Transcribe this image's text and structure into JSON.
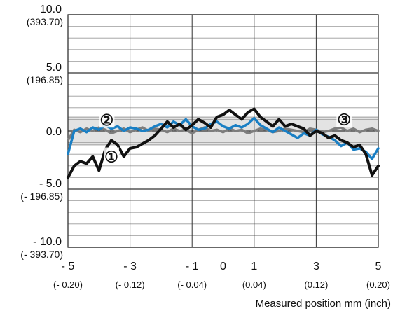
{
  "chart_data": {
    "type": "line",
    "xlabel": "Measured position mm (inch)",
    "ylabel": "",
    "xlim": [
      -5,
      5
    ],
    "ylim": [
      -10,
      10
    ],
    "grid": true,
    "tolerance_band": [
      -1.2,
      1.2
    ],
    "x_ticks": [
      {
        "value": -5,
        "label": "- 5",
        "sub": "(- 0.20)"
      },
      {
        "value": -3,
        "label": "- 3",
        "sub": "(- 0.12)"
      },
      {
        "value": -1,
        "label": "- 1",
        "sub": "(- 0.04)"
      },
      {
        "value": 0,
        "label": "0",
        "sub": ""
      },
      {
        "value": 1,
        "label": "1",
        "sub": "(0.04)"
      },
      {
        "value": 3,
        "label": "3",
        "sub": "(0.12)"
      },
      {
        "value": 5,
        "label": "5",
        "sub": "(0.20)"
      }
    ],
    "y_ticks": [
      {
        "value": 10,
        "label": "10.0",
        "sub": "(393.70)"
      },
      {
        "value": 5,
        "label": "5.0",
        "sub": "(196.85)"
      },
      {
        "value": 0,
        "label": "0.0",
        "sub": ""
      },
      {
        "value": -5,
        "label": "- 5.0",
        "sub": "(- 196.85)"
      },
      {
        "value": -10,
        "label": "- 10.0",
        "sub": "(- 393.70)"
      }
    ],
    "markers": [
      {
        "label": "①",
        "x": -3.6,
        "y": -2.2
      },
      {
        "label": "②",
        "x": -3.75,
        "y": 0.95
      },
      {
        "label": "③",
        "x": 3.9,
        "y": 1.0
      }
    ],
    "series": [
      {
        "id": "1",
        "color": "#111111",
        "x": [
          -5.0,
          -4.8,
          -4.6,
          -4.4,
          -4.2,
          -4.0,
          -3.8,
          -3.6,
          -3.4,
          -3.2,
          -3.0,
          -2.8,
          -2.6,
          -2.4,
          -2.2,
          -2.0,
          -1.8,
          -1.6,
          -1.4,
          -1.2,
          -1.0,
          -0.8,
          -0.6,
          -0.4,
          -0.2,
          0.0,
          0.2,
          0.4,
          0.6,
          0.8,
          1.0,
          1.2,
          1.4,
          1.6,
          1.8,
          2.0,
          2.2,
          2.4,
          2.6,
          2.8,
          3.0,
          3.2,
          3.4,
          3.6,
          3.8,
          4.0,
          4.2,
          4.4,
          4.6,
          4.8,
          5.0
        ],
        "values": [
          -4.0,
          -3.0,
          -2.6,
          -2.8,
          -2.2,
          -3.4,
          -1.6,
          -0.8,
          -1.2,
          -2.2,
          -1.5,
          -1.4,
          -1.1,
          -0.8,
          -0.4,
          0.2,
          0.8,
          0.3,
          0.6,
          0.1,
          0.5,
          1.0,
          0.7,
          0.3,
          1.2,
          1.4,
          1.8,
          1.4,
          1.0,
          1.6,
          1.9,
          1.2,
          0.8,
          0.4,
          1.0,
          0.4,
          0.6,
          0.4,
          0.2,
          -0.4,
          0.0,
          -0.2,
          -0.6,
          -0.4,
          -0.8,
          -1.0,
          -1.4,
          -1.2,
          -2.0,
          -3.8,
          -3.0
        ]
      },
      {
        "id": "2",
        "color": "#1a7fc4",
        "x": [
          -5.0,
          -4.8,
          -4.6,
          -4.4,
          -4.2,
          -4.0,
          -3.8,
          -3.6,
          -3.4,
          -3.2,
          -3.0,
          -2.8,
          -2.6,
          -2.4,
          -2.2,
          -2.0,
          -1.8,
          -1.6,
          -1.4,
          -1.2,
          -1.0,
          -0.8,
          -0.6,
          -0.4,
          -0.2,
          0.0,
          0.2,
          0.4,
          0.6,
          0.8,
          1.0,
          1.2,
          1.4,
          1.6,
          1.8,
          2.0,
          2.2,
          2.4,
          2.6,
          2.8,
          3.0,
          3.2,
          3.4,
          3.6,
          3.8,
          4.0,
          4.2,
          4.4,
          4.6,
          4.8,
          5.0
        ],
        "values": [
          -2.0,
          0.0,
          0.2,
          -0.1,
          0.3,
          0.1,
          0.5,
          0.2,
          0.4,
          0.0,
          0.3,
          0.2,
          0.0,
          0.1,
          0.4,
          0.6,
          0.3,
          0.8,
          0.5,
          1.0,
          0.4,
          0.1,
          0.2,
          0.6,
          0.8,
          0.4,
          0.2,
          0.5,
          0.3,
          0.6,
          1.1,
          0.5,
          0.2,
          -0.1,
          0.3,
          0.0,
          -0.3,
          -0.6,
          -0.2,
          -0.4,
          0.1,
          -0.3,
          -0.5,
          -0.8,
          -1.3,
          -1.0,
          -1.6,
          -1.5,
          -1.8,
          -2.4,
          -1.5
        ]
      },
      {
        "id": "3",
        "color": "#7d7d7d",
        "x": [
          -5.0,
          -4.8,
          -4.6,
          -4.4,
          -4.2,
          -4.0,
          -3.8,
          -3.6,
          -3.4,
          -3.2,
          -3.0,
          -2.8,
          -2.6,
          -2.4,
          -2.2,
          -2.0,
          -1.8,
          -1.6,
          -1.4,
          -1.2,
          -1.0,
          -0.8,
          -0.6,
          -0.4,
          -0.2,
          0.0,
          0.2,
          0.4,
          0.6,
          0.8,
          1.0,
          1.2,
          1.4,
          1.6,
          1.8,
          2.0,
          2.2,
          2.4,
          2.6,
          2.8,
          3.0,
          3.2,
          3.4,
          3.6,
          3.8,
          4.0,
          4.2,
          4.4,
          4.6,
          4.8,
          5.0
        ],
        "values": [
          -0.8,
          0.1,
          -0.1,
          0.2,
          0.0,
          0.3,
          0.1,
          -0.2,
          0.0,
          0.2,
          -0.1,
          0.1,
          0.3,
          0.0,
          0.2,
          0.1,
          -0.1,
          0.2,
          0.0,
          0.1,
          -0.2,
          0.1,
          0.3,
          0.0,
          0.1,
          -0.1,
          0.2,
          0.0,
          0.1,
          -0.2,
          0.0,
          0.2,
          0.1,
          -0.1,
          0.0,
          0.2,
          0.1,
          0.0,
          -0.1,
          0.2,
          0.1,
          -0.1,
          0.0,
          0.2,
          0.3,
          0.0,
          0.2,
          -0.1,
          0.1,
          0.2,
          0.0
        ]
      }
    ]
  },
  "colors": {
    "grid": "#333333",
    "minor_grid": "#9a9a9a",
    "band_fill": "#e3e3e3",
    "band_edge": "#9a9a9a"
  }
}
